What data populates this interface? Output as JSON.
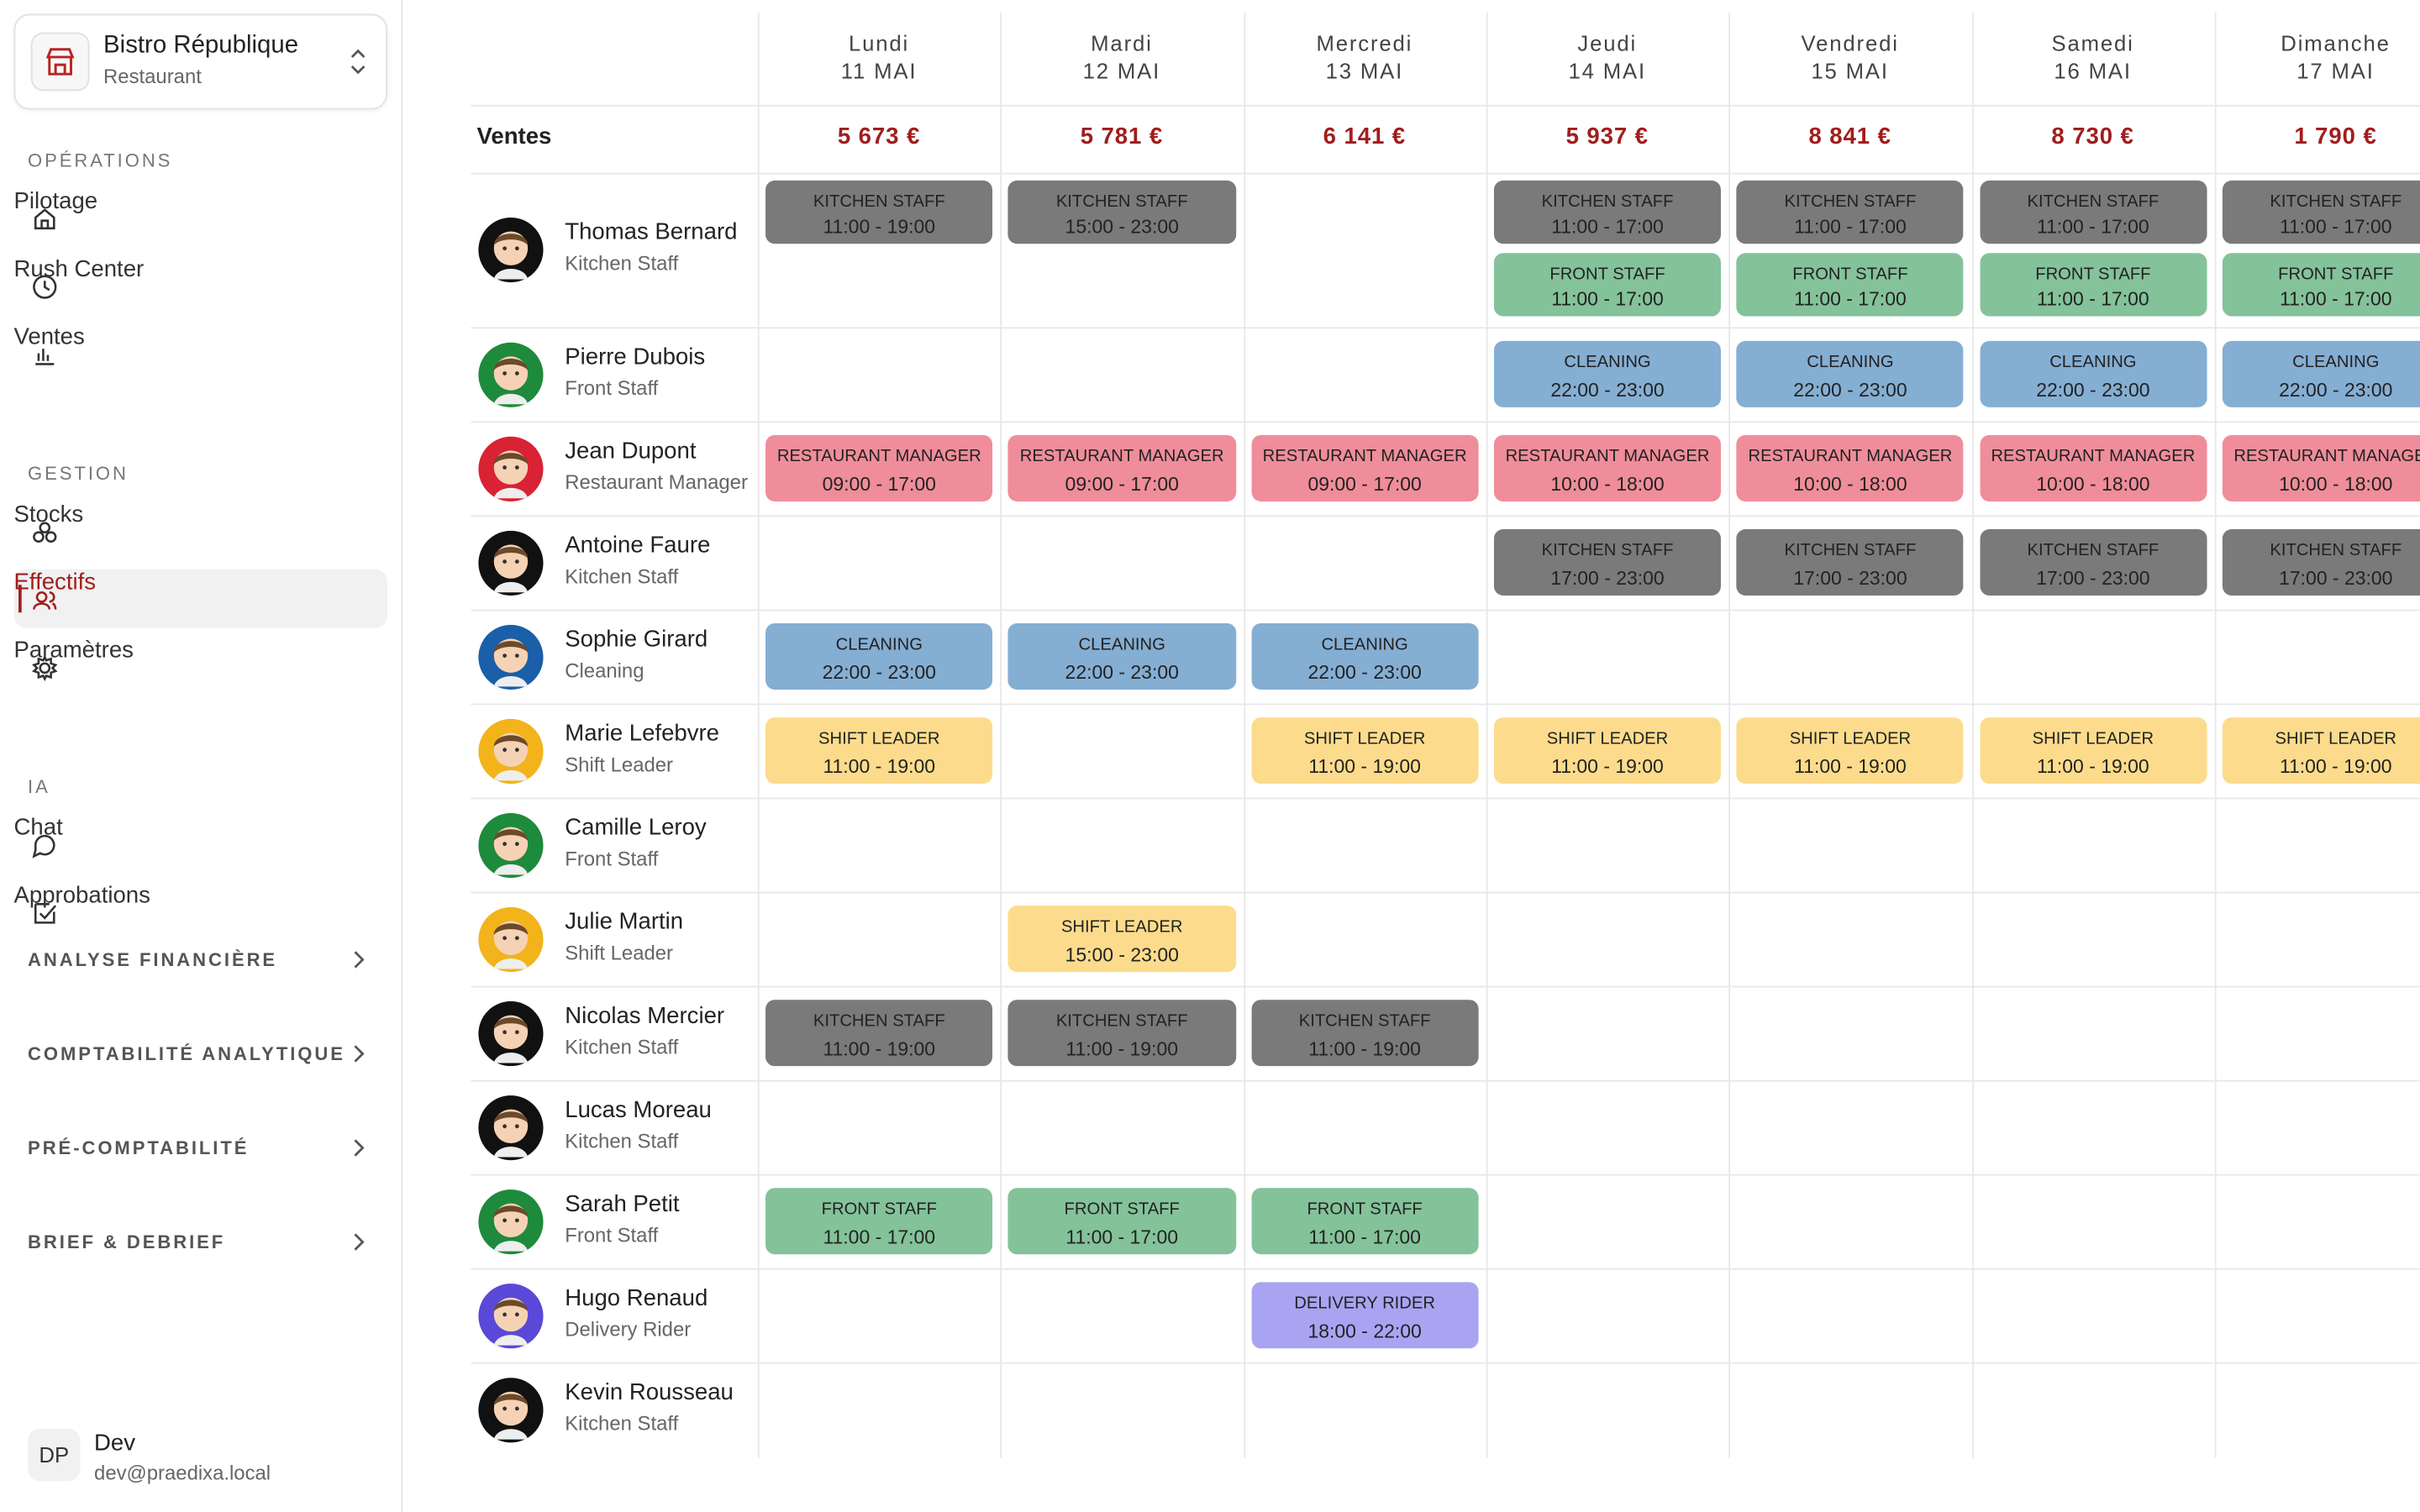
{
  "sidebar": {
    "brand": {
      "name": "Bistro République",
      "type": "Restaurant"
    },
    "sections": [
      {
        "title": "OPÉRATIONS",
        "items": [
          {
            "label": "Pilotage"
          },
          {
            "label": "Rush Center"
          },
          {
            "label": "Ventes"
          }
        ]
      },
      {
        "title": "GESTION",
        "items": [
          {
            "label": "Stocks"
          },
          {
            "label": "Effectifs",
            "active": true
          },
          {
            "label": "Paramètres"
          }
        ]
      },
      {
        "title": "IA",
        "items": [
          {
            "label": "Chat"
          },
          {
            "label": "Approbations"
          }
        ]
      }
    ],
    "collapsibles": [
      "ANALYSE FINANCIÈRE",
      "COMPTABILITÉ ANALYTIQUE",
      "PRÉ-COMPTABILITÉ",
      "BRIEF & DEBRIEF"
    ],
    "user": {
      "initials": "DP",
      "name": "Dev",
      "email": "dev@praedixa.local"
    }
  },
  "schedule": {
    "days": [
      {
        "name": "Lundi",
        "date": "11 MAI"
      },
      {
        "name": "Mardi",
        "date": "12 MAI"
      },
      {
        "name": "Mercredi",
        "date": "13 MAI"
      },
      {
        "name": "Jeudi",
        "date": "14 MAI"
      },
      {
        "name": "Vendredi",
        "date": "15 MAI"
      },
      {
        "name": "Samedi",
        "date": "16 MAI"
      },
      {
        "name": "Dimanche",
        "date": "17 MAI"
      }
    ],
    "sales_label": "Ventes",
    "sales": [
      "5 673 €",
      "5 781 €",
      "6 141 €",
      "5 937 €",
      "8 841 €",
      "8 730 €",
      "1 790 €"
    ],
    "employees": [
      {
        "name": "Thomas Bernard",
        "role": "Kitchen Staff",
        "avatar_color": "#111111",
        "shifts": [
          [
            {
              "label": "KITCHEN STAFF",
              "time": "11:00 - 19:00",
              "color": "#7a7a7a"
            }
          ],
          [
            {
              "label": "KITCHEN STAFF",
              "time": "15:00 - 23:00",
              "color": "#7a7a7a"
            }
          ],
          [],
          [
            {
              "label": "KITCHEN STAFF",
              "time": "11:00 - 17:00",
              "color": "#7a7a7a"
            },
            {
              "label": "FRONT STAFF",
              "time": "11:00 - 17:00",
              "color": "#84c29a"
            }
          ],
          [
            {
              "label": "KITCHEN STAFF",
              "time": "11:00 - 17:00",
              "color": "#7a7a7a"
            },
            {
              "label": "FRONT STAFF",
              "time": "11:00 - 17:00",
              "color": "#84c29a"
            }
          ],
          [
            {
              "label": "KITCHEN STAFF",
              "time": "11:00 - 17:00",
              "color": "#7a7a7a"
            },
            {
              "label": "FRONT STAFF",
              "time": "11:00 - 17:00",
              "color": "#84c29a"
            }
          ],
          [
            {
              "label": "KITCHEN STAFF",
              "time": "11:00 - 17:00",
              "color": "#7a7a7a"
            },
            {
              "label": "FRONT STAFF",
              "time": "11:00 - 17:00",
              "color": "#84c29a"
            }
          ]
        ]
      },
      {
        "name": "Pierre Dubois",
        "role": "Front Staff",
        "avatar_color": "#1e8a3c",
        "shifts": [
          [],
          [],
          [],
          [
            {
              "label": "CLEANING",
              "time": "22:00 - 23:00",
              "color": "#85aed3"
            }
          ],
          [
            {
              "label": "CLEANING",
              "time": "22:00 - 23:00",
              "color": "#85aed3"
            }
          ],
          [
            {
              "label": "CLEANING",
              "time": "22:00 - 23:00",
              "color": "#85aed3"
            }
          ],
          [
            {
              "label": "CLEANING",
              "time": "22:00 - 23:00",
              "color": "#85aed3"
            }
          ]
        ]
      },
      {
        "name": "Jean Dupont",
        "role": "Restaurant Manager",
        "avatar_color": "#d92233",
        "shifts": [
          [
            {
              "label": "RESTAURANT MANAGER",
              "time": "09:00 - 17:00",
              "color": "#ef8d9a"
            }
          ],
          [
            {
              "label": "RESTAURANT MANAGER",
              "time": "09:00 - 17:00",
              "color": "#ef8d9a"
            }
          ],
          [
            {
              "label": "RESTAURANT MANAGER",
              "time": "09:00 - 17:00",
              "color": "#ef8d9a"
            }
          ],
          [
            {
              "label": "RESTAURANT MANAGER",
              "time": "10:00 - 18:00",
              "color": "#ef8d9a"
            }
          ],
          [
            {
              "label": "RESTAURANT MANAGER",
              "time": "10:00 - 18:00",
              "color": "#ef8d9a"
            }
          ],
          [
            {
              "label": "RESTAURANT MANAGER",
              "time": "10:00 - 18:00",
              "color": "#ef8d9a"
            }
          ],
          [
            {
              "label": "RESTAURANT MANAGER",
              "time": "10:00 - 18:00",
              "color": "#ef8d9a"
            }
          ]
        ]
      },
      {
        "name": "Antoine Faure",
        "role": "Kitchen Staff",
        "avatar_color": "#111111",
        "shifts": [
          [],
          [],
          [],
          [
            {
              "label": "KITCHEN STAFF",
              "time": "17:00 - 23:00",
              "color": "#7a7a7a"
            }
          ],
          [
            {
              "label": "KITCHEN STAFF",
              "time": "17:00 - 23:00",
              "color": "#7a7a7a"
            }
          ],
          [
            {
              "label": "KITCHEN STAFF",
              "time": "17:00 - 23:00",
              "color": "#7a7a7a"
            }
          ],
          [
            {
              "label": "KITCHEN STAFF",
              "time": "17:00 - 23:00",
              "color": "#7a7a7a"
            }
          ]
        ]
      },
      {
        "name": "Sophie Girard",
        "role": "Cleaning",
        "avatar_color": "#1a5fa8",
        "shifts": [
          [
            {
              "label": "CLEANING",
              "time": "22:00 - 23:00",
              "color": "#85aed3"
            }
          ],
          [
            {
              "label": "CLEANING",
              "time": "22:00 - 23:00",
              "color": "#85aed3"
            }
          ],
          [
            {
              "label": "CLEANING",
              "time": "22:00 - 23:00",
              "color": "#85aed3"
            }
          ],
          [],
          [],
          [],
          []
        ]
      },
      {
        "name": "Marie Lefebvre",
        "role": "Shift Leader",
        "avatar_color": "#f2b31b",
        "shifts": [
          [
            {
              "label": "SHIFT LEADER",
              "time": "11:00 - 19:00",
              "color": "#fcdc8c"
            }
          ],
          [],
          [
            {
              "label": "SHIFT LEADER",
              "time": "11:00 - 19:00",
              "color": "#fcdc8c"
            }
          ],
          [
            {
              "label": "SHIFT LEADER",
              "time": "11:00 - 19:00",
              "color": "#fcdc8c"
            }
          ],
          [
            {
              "label": "SHIFT LEADER",
              "time": "11:00 - 19:00",
              "color": "#fcdc8c"
            }
          ],
          [
            {
              "label": "SHIFT LEADER",
              "time": "11:00 - 19:00",
              "color": "#fcdc8c"
            }
          ],
          [
            {
              "label": "SHIFT LEADER",
              "time": "11:00 - 19:00",
              "color": "#fcdc8c"
            }
          ]
        ]
      },
      {
        "name": "Camille Leroy",
        "role": "Front Staff",
        "avatar_color": "#1e8a3c",
        "shifts": [
          [],
          [],
          [],
          [],
          [],
          [],
          []
        ]
      },
      {
        "name": "Julie Martin",
        "role": "Shift Leader",
        "avatar_color": "#f2b31b",
        "shifts": [
          [],
          [
            {
              "label": "SHIFT LEADER",
              "time": "15:00 - 23:00",
              "color": "#fcdc8c"
            }
          ],
          [],
          [],
          [],
          [],
          []
        ]
      },
      {
        "name": "Nicolas Mercier",
        "role": "Kitchen Staff",
        "avatar_color": "#111111",
        "shifts": [
          [
            {
              "label": "KITCHEN STAFF",
              "time": "11:00 - 19:00",
              "color": "#7a7a7a"
            }
          ],
          [
            {
              "label": "KITCHEN STAFF",
              "time": "11:00 - 19:00",
              "color": "#7a7a7a"
            }
          ],
          [
            {
              "label": "KITCHEN STAFF",
              "time": "11:00 - 19:00",
              "color": "#7a7a7a"
            }
          ],
          [],
          [],
          [],
          []
        ]
      },
      {
        "name": "Lucas Moreau",
        "role": "Kitchen Staff",
        "avatar_color": "#111111",
        "shifts": [
          [],
          [],
          [],
          [],
          [],
          [],
          []
        ]
      },
      {
        "name": "Sarah Petit",
        "role": "Front Staff",
        "avatar_color": "#1e8a3c",
        "shifts": [
          [
            {
              "label": "FRONT STAFF",
              "time": "11:00 - 17:00",
              "color": "#84c29a"
            }
          ],
          [
            {
              "label": "FRONT STAFF",
              "time": "11:00 - 17:00",
              "color": "#84c29a"
            }
          ],
          [
            {
              "label": "FRONT STAFF",
              "time": "11:00 - 17:00",
              "color": "#84c29a"
            }
          ],
          [],
          [],
          [],
          []
        ]
      },
      {
        "name": "Hugo Renaud",
        "role": "Delivery Rider",
        "avatar_color": "#5a48d8",
        "shifts": [
          [],
          [],
          [
            {
              "label": "DELIVERY RIDER",
              "time": "18:00 - 22:00",
              "color": "#a9a4f2"
            }
          ],
          [],
          [],
          [],
          []
        ]
      },
      {
        "name": "Kevin Rousseau",
        "role": "Kitchen Staff",
        "avatar_color": "#111111",
        "shifts": [
          [],
          [],
          [],
          [],
          [],
          [],
          []
        ]
      }
    ]
  }
}
